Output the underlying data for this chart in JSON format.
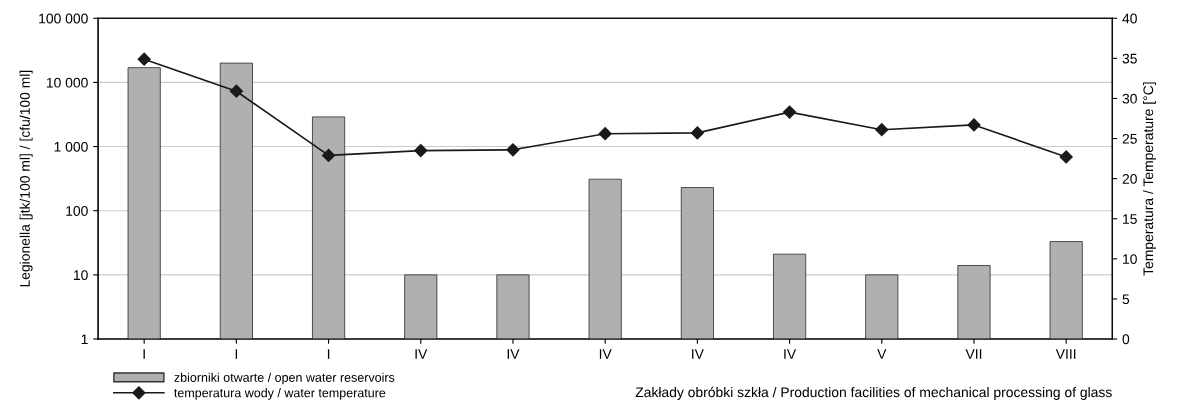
{
  "chart_data": {
    "type": "bar",
    "categories": [
      "I",
      "I",
      "I",
      "IV",
      "IV",
      "IV",
      "IV",
      "IV",
      "V",
      "VII",
      "VIII"
    ],
    "series": [
      {
        "name": "zbiorniki otwarte / open water reservoirs",
        "color": "#b0b0b0",
        "values": [
          17000,
          20000,
          2900,
          10,
          10,
          310,
          230,
          21,
          10,
          14,
          33
        ]
      },
      {
        "name": "temperatura wody / water temperature",
        "type": "line",
        "axis": "y2",
        "color": "#1a1a1a",
        "marker": "diamond",
        "line_style": "solid",
        "values": [
          34.9,
          30.9,
          22.9,
          23.5,
          23.6,
          25.6,
          25.7,
          28.3,
          26.1,
          26.7,
          22.7
        ]
      }
    ],
    "log": true,
    "ylim": [
      1,
      100000
    ],
    "yticks": [
      1,
      10,
      100,
      {
        "value": 1000,
        "label": "1 000"
      },
      {
        "value": 10000,
        "label": "10 000"
      },
      {
        "value": 100000,
        "label": "100 000"
      }
    ],
    "y2lim": [
      0,
      40
    ],
    "y2ticks": [
      0,
      5,
      10,
      15,
      20,
      25,
      30,
      35,
      40
    ],
    "ylabel": "Legionella [jtk/100 ml] / [cfu/100 ml]",
    "y2label": "Temperatura / Temperature [°C]",
    "xlabel": "Zakłady obróbki szkła / Production facilities of mechanical processing of glass",
    "grid": "y",
    "legend": "bottom left"
  }
}
